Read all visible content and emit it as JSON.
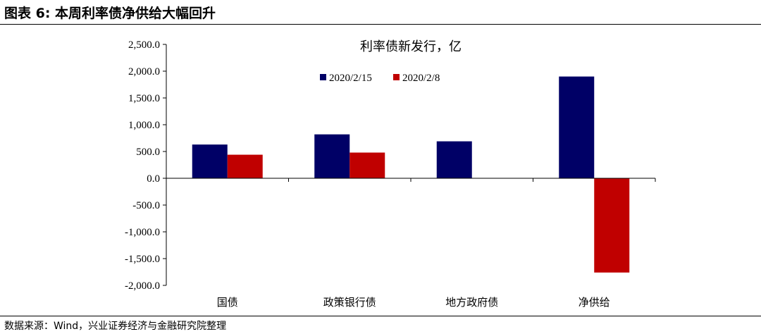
{
  "figure": {
    "title": "图表 6:  本周利率债净供给大幅回升",
    "source": "数据来源：Wind，兴业证券经济与金融研究院整理"
  },
  "chart_data": {
    "type": "bar",
    "title": "利率债新发行，亿",
    "categories": [
      "国债",
      "政策银行债",
      "地方政府债",
      "净供给"
    ],
    "series": [
      {
        "name": "2020/2/15",
        "color": "#000066",
        "values": [
          630,
          820,
          690,
          1900
        ]
      },
      {
        "name": "2020/2/8",
        "color": "#c00000",
        "values": [
          440,
          480,
          0,
          -1760
        ]
      }
    ],
    "ylim": [
      -2000,
      2500
    ],
    "yticks": [
      2500,
      2000,
      1500,
      1000,
      500,
      0,
      -500,
      -1000,
      -1500,
      -2000
    ],
    "ytick_labels": [
      "2,500.0",
      "2,000.0",
      "1,500.0",
      "1,000.0",
      "500.0",
      "0.0",
      "-500.0",
      "-1,000.0",
      "-1,500.0",
      "-2,000.0"
    ],
    "legend_position": "top-center",
    "grid": false
  }
}
